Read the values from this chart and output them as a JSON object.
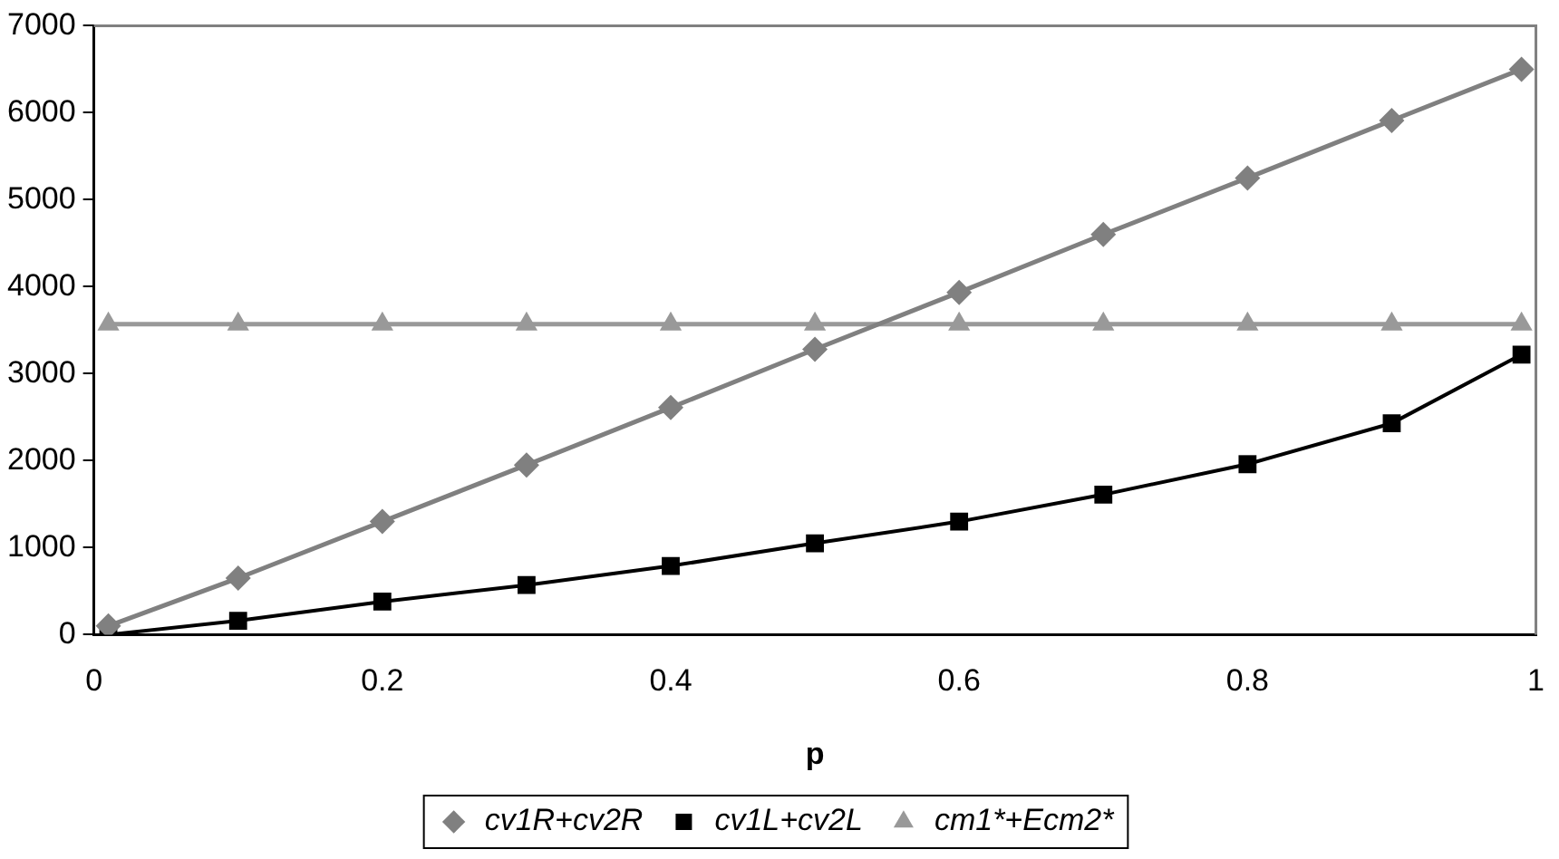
{
  "chart_data": {
    "type": "line",
    "xlabel": "p",
    "x": [
      0.01,
      0.1,
      0.2,
      0.3,
      0.4,
      0.5,
      0.6,
      0.7,
      0.8,
      0.9,
      0.99
    ],
    "xlim": [
      0,
      1
    ],
    "xticks": [
      0,
      0.2,
      0.4,
      0.6,
      0.8,
      1
    ],
    "ylim": [
      0,
      7000
    ],
    "yticks": [
      0,
      1000,
      2000,
      3000,
      4000,
      5000,
      6000,
      7000
    ],
    "grid": false,
    "legend": "bottom",
    "line_style": "solid",
    "series": [
      {
        "name": "cv1R+cv2R",
        "color": "#808080",
        "marker": "diamond",
        "values": [
          100,
          650,
          1300,
          1950,
          2610,
          3280,
          3935,
          4600,
          5250,
          5910,
          6500
        ]
      },
      {
        "name": "cv1L+cv2L",
        "color": "#000000",
        "marker": "square",
        "values": [
          0,
          160,
          380,
          570,
          790,
          1050,
          1300,
          1610,
          1960,
          2430,
          3220
        ]
      },
      {
        "name": "cm1*+Ecm2*",
        "color": "#999999",
        "marker": "triangle",
        "values": [
          3570,
          3570,
          3570,
          3570,
          3570,
          3570,
          3570,
          3570,
          3570,
          3570,
          3570
        ]
      }
    ]
  }
}
